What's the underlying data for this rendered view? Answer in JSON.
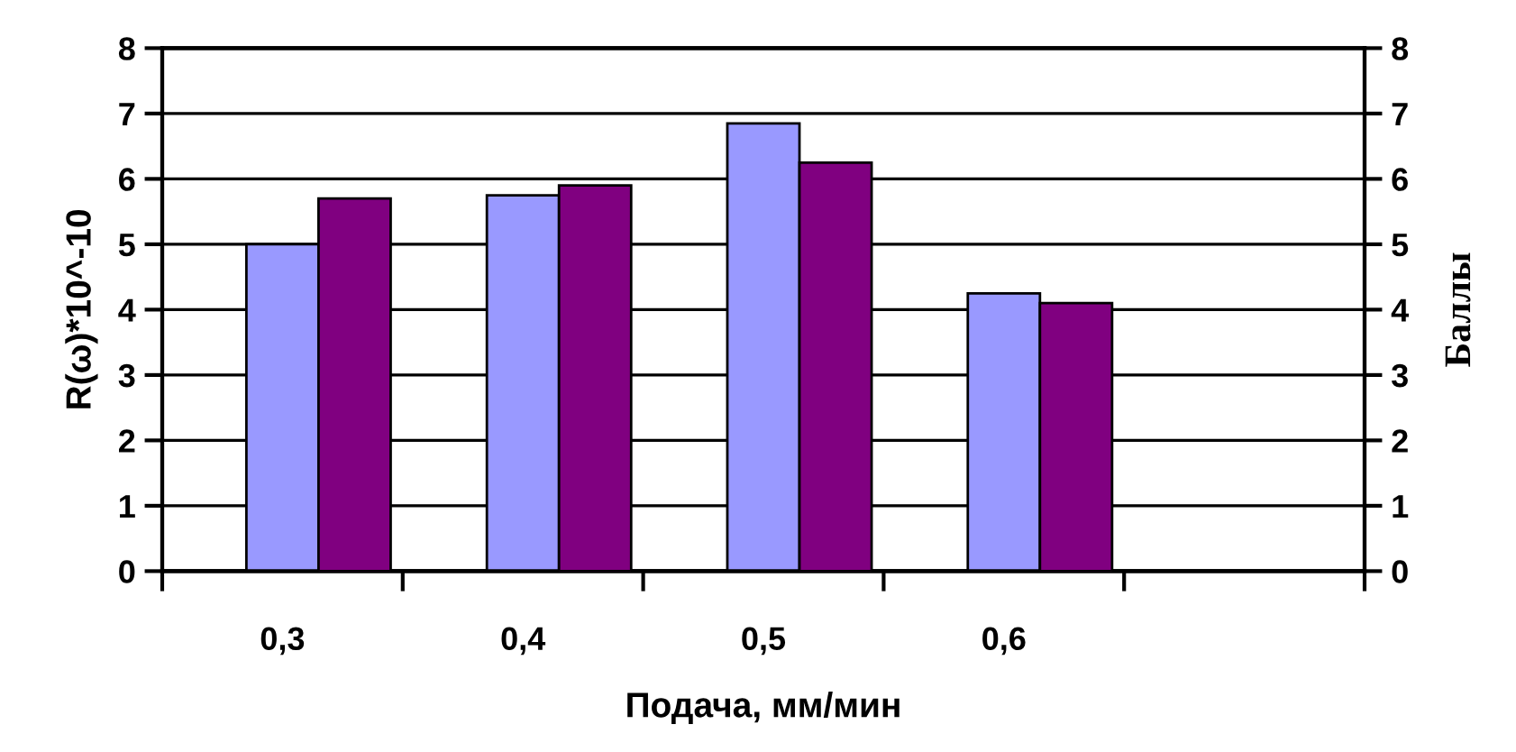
{
  "chart_data": {
    "type": "bar",
    "categories": [
      "0,3",
      "0,4",
      "0,5",
      "0,6",
      null
    ],
    "series": [
      {
        "color": "#9999ff",
        "values": [
          5.0,
          5.75,
          6.85,
          4.25,
          null
        ]
      },
      {
        "color": "#800080",
        "values": [
          5.7,
          5.9,
          6.25,
          4.1,
          null
        ],
        "axis": "y2"
      }
    ],
    "xlabel": "Подача, мм/мин",
    "ylabel": "R(ω)*10^-10",
    "y2label": "Баллы",
    "ylim": [
      0,
      8
    ],
    "yticks": [
      0,
      1,
      2,
      3,
      4,
      5,
      6,
      7,
      8
    ],
    "y2lim": [
      0,
      8
    ],
    "y2ticks": [
      0,
      1,
      2,
      3,
      4,
      5,
      6,
      7,
      8
    ],
    "grid": "y"
  }
}
